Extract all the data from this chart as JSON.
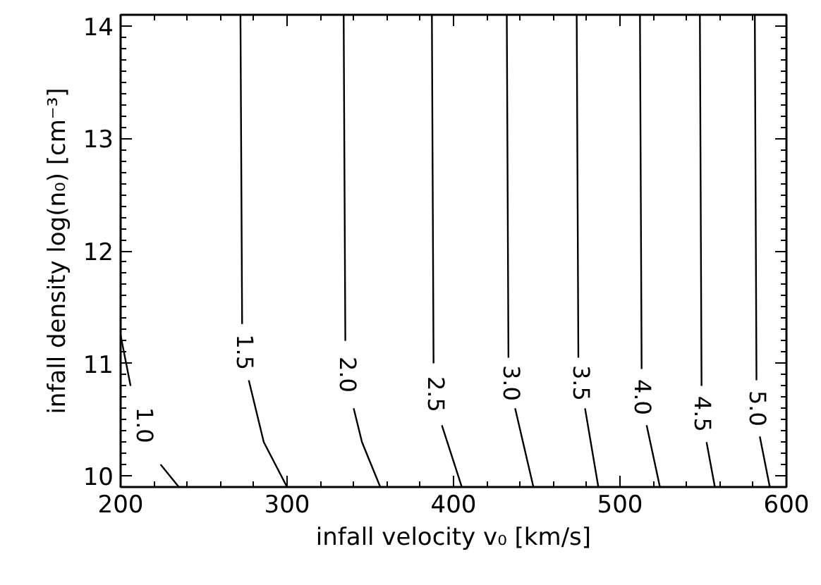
{
  "chart_data": {
    "type": "line",
    "xlabel": "infall velocity v₀ [km/s]",
    "ylabel": "infall density log(n₀) [cm⁻³]",
    "xlim": [
      200,
      600
    ],
    "ylim": [
      9.9,
      14.1
    ],
    "xticks": [
      200,
      300,
      400,
      500,
      600
    ],
    "yticks": [
      10,
      11,
      12,
      13,
      14
    ],
    "grid": false,
    "legend": "bottom",
    "line_style": "solid",
    "series": [
      {
        "name": "1.0",
        "color": "#000000",
        "x": [
          200,
          206,
          215,
          224,
          235
        ],
        "values": [
          11.25,
          10.8,
          null,
          10.1,
          9.9
        ]
      },
      {
        "name": "1.5",
        "color": "#000000",
        "x": [
          272,
          273,
          275,
          277,
          286,
          300
        ],
        "values": [
          14.1,
          11.35,
          null,
          10.85,
          10.3,
          9.9
        ]
      },
      {
        "name": "2.0",
        "color": "#000000",
        "x": [
          334,
          335,
          337,
          340,
          345,
          356
        ],
        "values": [
          14.1,
          11.2,
          null,
          10.6,
          10.3,
          9.9
        ]
      },
      {
        "name": "2.5",
        "color": "#000000",
        "x": [
          387,
          388,
          390,
          393,
          405
        ],
        "values": [
          14.1,
          11.0,
          null,
          10.45,
          9.9
        ]
      },
      {
        "name": "3.0",
        "color": "#000000",
        "x": [
          432,
          433,
          435,
          437,
          448
        ],
        "values": [
          14.1,
          11.05,
          null,
          10.6,
          9.9
        ]
      },
      {
        "name": "3.5",
        "color": "#000000",
        "x": [
          474,
          475,
          477,
          479,
          487
        ],
        "values": [
          14.1,
          11.05,
          null,
          10.6,
          9.9
        ]
      },
      {
        "name": "4.0",
        "color": "#000000",
        "x": [
          512,
          513,
          514,
          516,
          524
        ],
        "values": [
          14.1,
          10.95,
          null,
          10.45,
          9.9
        ]
      },
      {
        "name": "4.5",
        "color": "#000000",
        "x": [
          548,
          549,
          550,
          552,
          557
        ],
        "values": [
          14.1,
          10.8,
          null,
          10.3,
          9.9
        ]
      },
      {
        "name": "5.0",
        "color": "#000000",
        "x": [
          581,
          582,
          583,
          584,
          590
        ],
        "values": [
          14.1,
          10.85,
          null,
          10.35,
          9.9
        ]
      }
    ]
  }
}
